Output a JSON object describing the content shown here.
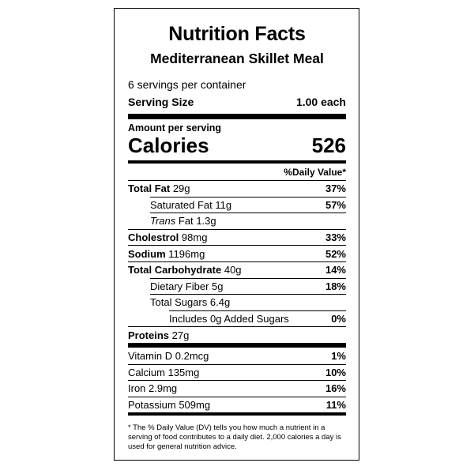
{
  "label": {
    "title": "Nutrition Facts",
    "product": "Mediterranean Skillet Meal",
    "servings_per_container": "6 servings per container",
    "serving_size_label": "Serving Size",
    "serving_size_value": "1.00 each",
    "amount_per_serving": "Amount per serving",
    "calories_label": "Calories",
    "calories_value": "526",
    "dv_header": "%Daily Value*"
  },
  "nutrients": [
    {
      "name": "Total Fat",
      "amount": "29g",
      "dv": "37%"
    },
    {
      "name": "Saturated Fat",
      "amount": "11g",
      "dv": "57%"
    },
    {
      "name_italic": "Trans",
      "name": "Fat",
      "amount": "1.3g",
      "dv": ""
    },
    {
      "name": "Cholestrol",
      "amount": "98mg",
      "dv": "33%"
    },
    {
      "name": "Sodium",
      "amount": "1196mg",
      "dv": "52%"
    },
    {
      "name": "Total Carbohydrate",
      "amount": "40g",
      "dv": "14%"
    },
    {
      "name": "Dietary Fiber",
      "amount": "5g",
      "dv": "18%"
    },
    {
      "name": "Total Sugars",
      "amount": "6.4g",
      "dv": ""
    },
    {
      "name": "Includes 0g Added Sugars",
      "amount": "",
      "dv": "0%"
    },
    {
      "name": "Proteins",
      "amount": "27g",
      "dv": ""
    }
  ],
  "vitamins": [
    {
      "name": "Vitamin D",
      "amount": "0.2mcg",
      "dv": "1%"
    },
    {
      "name": "Calcium",
      "amount": "135mg",
      "dv": "10%"
    },
    {
      "name": "Iron",
      "amount": "2.9mg",
      "dv": "16%"
    },
    {
      "name": "Potassium",
      "amount": "509mg",
      "dv": "11%"
    }
  ],
  "footnote": "* The % Daily Value (DV) tells you how much a nutrient in a serving of food contributes to a daily diet. 2,000 calories a day is used for general nutrition advice."
}
